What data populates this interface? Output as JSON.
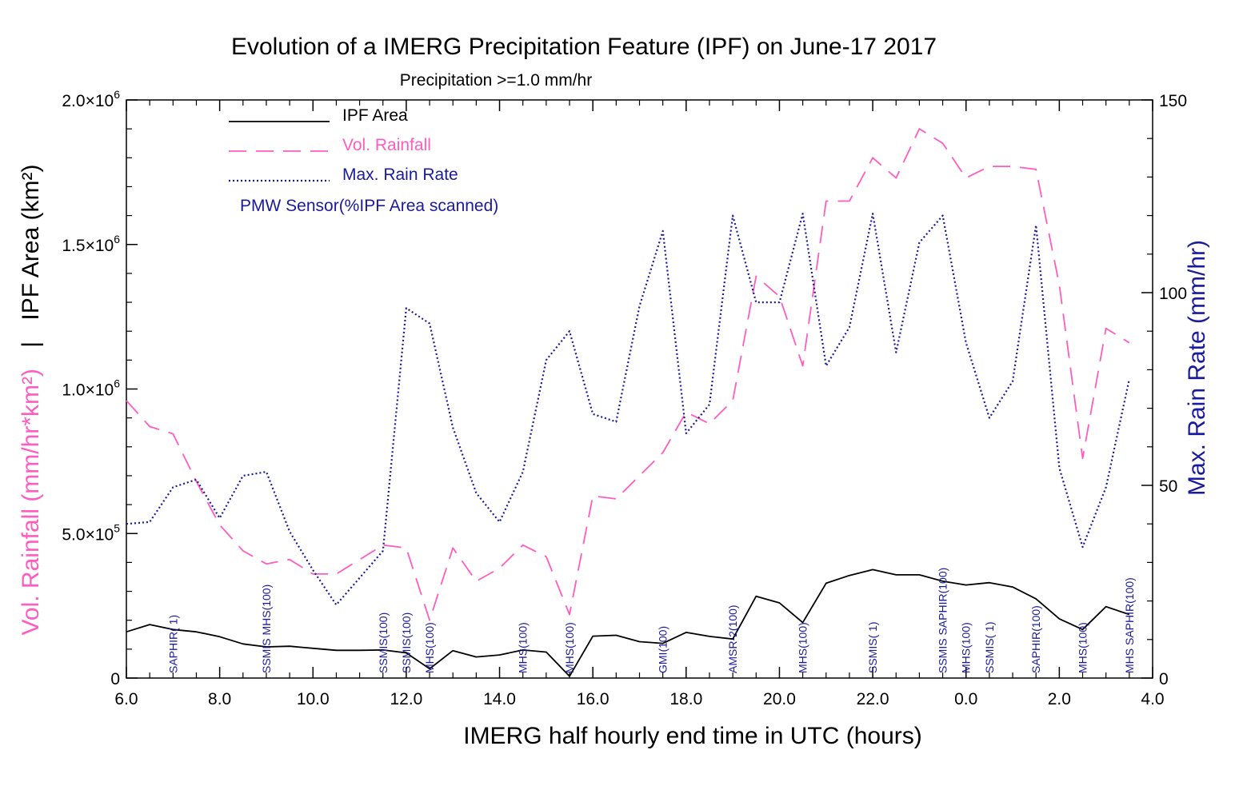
{
  "chart_data": {
    "type": "line",
    "title": "Evolution of a IMERG Precipitation Feature (IPF) on June-17 2017",
    "subtitle": "Precipitation >=1.0 mm/hr",
    "xlabel": "IMERG half hourly end time in UTC (hours)",
    "ylabel_left_colored": "Vol. Rainfall (mm/hr*km²)",
    "ylabel_left_separator": "|",
    "ylabel_left_black": "IPF Area (km²)",
    "ylabel_right": "Max. Rain Rate (mm/hr)",
    "x_ticks": [
      "6.0",
      "8.0",
      "10.0",
      "12.0",
      "14.0",
      "16.0",
      "18.0",
      "20.0",
      "22.0",
      "0.0",
      "2.0",
      "4.0"
    ],
    "x_tick_hours_elapsed": [
      0,
      2,
      4,
      6,
      8,
      10,
      12,
      14,
      16,
      18,
      20,
      22
    ],
    "xlim": [
      6.0,
      28.0
    ],
    "y_left_ticks": [
      {
        "value": 0,
        "mantissa": "0",
        "exp": ""
      },
      {
        "value": 500000,
        "mantissa": "5.0×10",
        "exp": "5"
      },
      {
        "value": 1000000,
        "mantissa": "1.0×10",
        "exp": "6"
      },
      {
        "value": 1500000,
        "mantissa": "1.5×10",
        "exp": "6"
      },
      {
        "value": 2000000,
        "mantissa": "2.0×10",
        "exp": "6"
      }
    ],
    "ylim_left": [
      0,
      2000000
    ],
    "y_right_ticks": [
      "0",
      "50",
      "100",
      "150"
    ],
    "ylim_right": [
      0,
      150
    ],
    "legend": {
      "placement": "top-left",
      "items": [
        {
          "label": "IPF Area",
          "color": "#000000",
          "style": "solid"
        },
        {
          "label": "Vol. Rainfall",
          "color": "#ff5cc0",
          "style": "dashed"
        },
        {
          "label": "Max. Rain Rate",
          "color": "#1a1a9c",
          "style": "dotted"
        },
        {
          "label": "PMW Sensor(%IPF Area scanned)",
          "color": "#1a1a9c",
          "style": "none"
        }
      ]
    },
    "x": [
      6.0,
      6.5,
      7.0,
      7.5,
      8.0,
      8.5,
      9.0,
      9.5,
      10.0,
      10.5,
      11.0,
      11.5,
      12.0,
      12.5,
      13.0,
      13.5,
      14.0,
      14.5,
      15.0,
      15.5,
      16.0,
      16.5,
      17.0,
      17.5,
      18.0,
      18.5,
      19.0,
      19.5,
      20.0,
      20.5,
      21.0,
      21.5,
      22.0,
      22.5,
      23.0,
      23.5,
      24.0,
      24.5,
      25.0,
      25.5,
      26.0,
      26.5,
      27.0,
      27.5
    ],
    "series": [
      {
        "name": "IPF Area",
        "axis": "left",
        "color": "#000000",
        "style": "solid",
        "values": [
          160000,
          185000,
          168000,
          160000,
          143000,
          118000,
          108000,
          110000,
          103000,
          96000,
          96000,
          97000,
          87000,
          32000,
          95000,
          73000,
          80000,
          97000,
          90000,
          6000,
          145000,
          148000,
          126000,
          120000,
          158000,
          144000,
          135000,
          283000,
          260000,
          192000,
          328000,
          355000,
          375000,
          357000,
          357000,
          335000,
          322000,
          330000,
          315000,
          274000,
          205000,
          168000,
          247000,
          220000
        ]
      },
      {
        "name": "Vol. Rainfall",
        "axis": "left",
        "color": "#ff5cc0",
        "style": "dashed",
        "values": [
          960000,
          870000,
          845000,
          680000,
          530000,
          440000,
          395000,
          410000,
          360000,
          360000,
          410000,
          460000,
          450000,
          200000,
          450000,
          335000,
          380000,
          460000,
          420000,
          220000,
          630000,
          620000,
          700000,
          780000,
          920000,
          880000,
          960000,
          1390000,
          1320000,
          1080000,
          1650000,
          1650000,
          1800000,
          1730000,
          1900000,
          1850000,
          1730000,
          1770000,
          1770000,
          1760000,
          1360000,
          760000,
          1210000,
          1160000
        ]
      },
      {
        "name": "Max. Rain Rate",
        "axis": "right",
        "color": "#1a1a9c",
        "style": "dotted",
        "values": [
          40,
          40.5,
          49.5,
          51.5,
          41.5,
          52.5,
          53.5,
          38,
          28,
          19,
          26,
          33,
          96,
          92,
          65,
          48,
          40.5,
          53.5,
          82.5,
          90,
          68.5,
          66.5,
          96.5,
          116,
          63.5,
          71,
          120,
          97.5,
          97.5,
          120.5,
          81,
          91,
          120.5,
          84.5,
          113,
          120,
          87,
          67.5,
          77,
          117.5,
          54.5,
          34,
          49.5,
          77.5
        ]
      }
    ],
    "sensor_labels": [
      {
        "x": 7.0,
        "text": "SAPHIR( 1)"
      },
      {
        "x": 9.0,
        "text": "SSMIS MHS(100)"
      },
      {
        "x": 11.5,
        "text": "SSMIS(100)"
      },
      {
        "x": 12.0,
        "text": "SSMIS(100)"
      },
      {
        "x": 12.5,
        "text": "MHS(100)"
      },
      {
        "x": 14.5,
        "text": "MHS(100)"
      },
      {
        "x": 15.5,
        "text": "MHS(100)"
      },
      {
        "x": 17.5,
        "text": "GMI(100)"
      },
      {
        "x": 19.0,
        "text": "AMSR-2(100)"
      },
      {
        "x": 20.5,
        "text": "MHS(100)"
      },
      {
        "x": 22.0,
        "text": "SSMIS( 1)"
      },
      {
        "x": 23.5,
        "text": "SSMIS SAPHIR(100)"
      },
      {
        "x": 24.0,
        "text": "MHS(100)"
      },
      {
        "x": 24.5,
        "text": "SSMIS( 1)"
      },
      {
        "x": 25.5,
        "text": "SAPHIR(100)"
      },
      {
        "x": 26.5,
        "text": "MHS(100)"
      },
      {
        "x": 27.5,
        "text": "MHS SAPHIR(100)"
      }
    ]
  }
}
